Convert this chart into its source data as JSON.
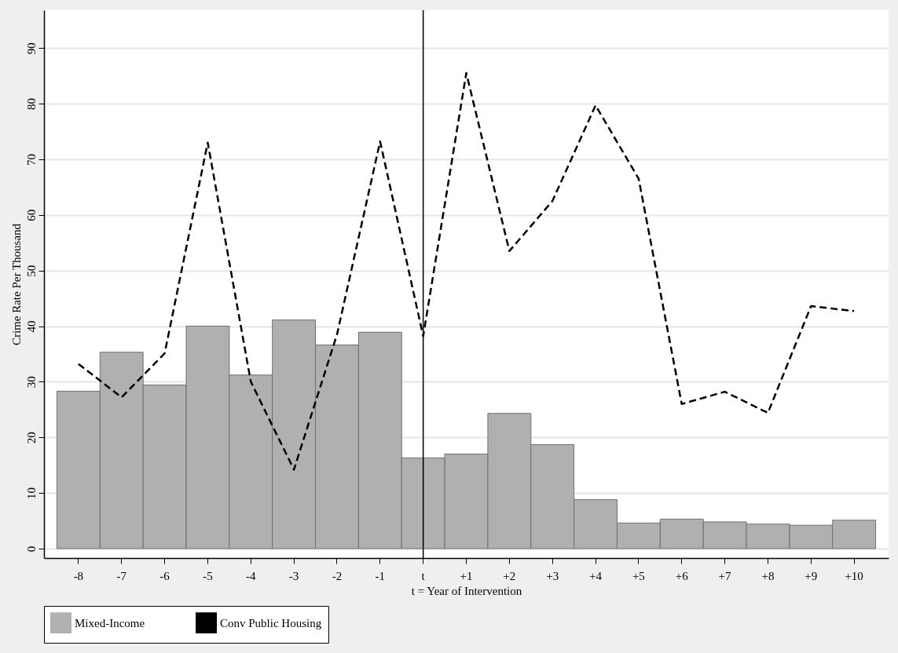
{
  "chart_data": {
    "type": "bar",
    "xlabel": "t = Year of Intervention",
    "ylabel": "Crime Rate Per Thousand",
    "categories": [
      "-8",
      "-7",
      "-6",
      "-5",
      "-4",
      "-3",
      "-2",
      "-1",
      "t",
      "+1",
      "+2",
      "+3",
      "+4",
      "+5",
      "+6",
      "+7",
      "+8",
      "+9",
      "+10"
    ],
    "series": [
      {
        "name": "Mixed-Income",
        "color": "#b0b0b0",
        "values": [
          28.3,
          35.3,
          29.4,
          40.0,
          31.2,
          41.1,
          36.6,
          38.9,
          16.3,
          17.0,
          24.3,
          18.7,
          8.8,
          4.6,
          5.3,
          4.8,
          4.4,
          4.2,
          5.1
        ]
      },
      {
        "name": "Conv Public Housing",
        "type": "line",
        "color": "#000000",
        "line_style": "dashed",
        "values": [
          33.2,
          27.2,
          35.1,
          73.0,
          30.0,
          14.2,
          38.5,
          73.2,
          38.2,
          85.5,
          53.5,
          62.5,
          79.7,
          66.5,
          26.0,
          28.2,
          24.4,
          43.6,
          42.7
        ]
      }
    ],
    "ylim": [
      -1.7,
      96.8
    ],
    "yticks": [
      0,
      10,
      20,
      30,
      40,
      50,
      60,
      70,
      80,
      90
    ],
    "ref_lines": [
      {
        "axis": "x",
        "value": "t",
        "color": "#000000"
      }
    ],
    "grid": "y",
    "legend": "bottom"
  }
}
